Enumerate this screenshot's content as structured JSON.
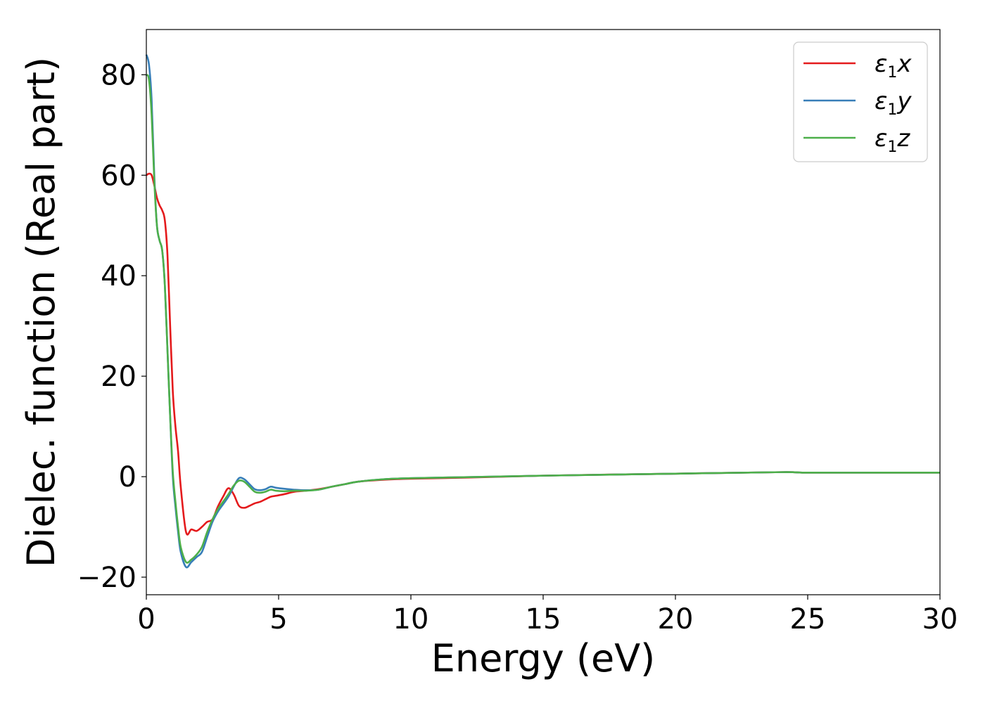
{
  "chart_data": {
    "type": "line",
    "title": "",
    "xlabel": "Energy (eV)",
    "ylabel": "Dielec. function (Real part)",
    "xlim": [
      0,
      30
    ],
    "ylim": [
      -23.5,
      89
    ],
    "xticks": [
      0,
      5,
      10,
      15,
      20,
      25,
      30
    ],
    "xtick_labels": [
      "0",
      "5",
      "10",
      "15",
      "20",
      "25",
      "30"
    ],
    "yticks": [
      -20,
      0,
      20,
      40,
      60,
      80
    ],
    "ytick_labels": [
      "−20",
      "0",
      "20",
      "40",
      "60",
      "80"
    ],
    "grid": false,
    "legend_position": "top-right",
    "series": [
      {
        "name": "ε1x",
        "legend": {
          "base": "ε",
          "sub": "1",
          "var": "x"
        },
        "color": "#e41a1c",
        "x": [
          0.0,
          0.1,
          0.2,
          0.3,
          0.4,
          0.5,
          0.6,
          0.7,
          0.8,
          0.9,
          1.0,
          1.1,
          1.2,
          1.3,
          1.5,
          1.7,
          1.9,
          2.1,
          2.3,
          2.5,
          2.7,
          2.9,
          3.1,
          3.3,
          3.5,
          3.7,
          3.9,
          4.1,
          4.3,
          4.5,
          4.7,
          4.9,
          5.2,
          5.6,
          6.0,
          6.5,
          7.0,
          7.5,
          8.0,
          9.0,
          10.0,
          12.0,
          15.0,
          20.0,
          24.0,
          25.0,
          28.0,
          30.0
        ],
        "y": [
          60,
          60.3,
          60,
          58,
          55.5,
          54,
          53,
          51,
          44,
          30,
          17,
          10,
          5,
          -2,
          -11,
          -10.5,
          -10.8,
          -10,
          -9,
          -8.5,
          -6,
          -4,
          -2.3,
          -3.5,
          -5.8,
          -6.2,
          -5.8,
          -5.3,
          -5,
          -4.5,
          -4,
          -3.8,
          -3.5,
          -3,
          -2.8,
          -2.5,
          -2,
          -1.5,
          -1,
          -0.6,
          -0.4,
          -0.2,
          0.2,
          0.6,
          0.9,
          0.8,
          0.8,
          0.8
        ]
      },
      {
        "name": "ε1y",
        "legend": {
          "base": "ε",
          "sub": "1",
          "var": "y"
        },
        "color": "#377eb8",
        "x": [
          0.0,
          0.1,
          0.2,
          0.3,
          0.4,
          0.5,
          0.6,
          0.7,
          0.8,
          0.9,
          1.0,
          1.1,
          1.2,
          1.3,
          1.5,
          1.7,
          1.9,
          2.1,
          2.3,
          2.5,
          2.7,
          2.9,
          3.1,
          3.3,
          3.5,
          3.7,
          3.9,
          4.1,
          4.3,
          4.5,
          4.7,
          4.9,
          5.2,
          5.6,
          6.0,
          6.5,
          7.0,
          7.5,
          8.0,
          9.0,
          10.0,
          12.0,
          15.0,
          20.0,
          24.0,
          25.0,
          28.0,
          30.0
        ],
        "y": [
          84,
          82,
          75,
          60,
          50,
          47,
          45,
          38,
          25,
          12,
          0,
          -6,
          -11,
          -15,
          -18,
          -17,
          -16,
          -15,
          -12,
          -9,
          -7,
          -5.5,
          -4,
          -2,
          -0.3,
          -0.5,
          -1.5,
          -2.5,
          -2.7,
          -2.5,
          -2,
          -2.2,
          -2.4,
          -2.6,
          -2.7,
          -2.6,
          -2,
          -1.5,
          -1,
          -0.5,
          -0.3,
          -0.1,
          0.2,
          0.6,
          0.9,
          0.8,
          0.8,
          0.8
        ]
      },
      {
        "name": "ε1z",
        "legend": {
          "base": "ε",
          "sub": "1",
          "var": "z"
        },
        "color": "#4daf4a",
        "x": [
          0.0,
          0.1,
          0.2,
          0.3,
          0.4,
          0.5,
          0.6,
          0.7,
          0.8,
          0.9,
          1.0,
          1.1,
          1.2,
          1.3,
          1.5,
          1.7,
          1.9,
          2.1,
          2.3,
          2.5,
          2.7,
          2.9,
          3.1,
          3.3,
          3.5,
          3.7,
          3.9,
          4.1,
          4.3,
          4.5,
          4.7,
          4.9,
          5.2,
          5.6,
          6.0,
          6.5,
          7.0,
          7.5,
          8.0,
          9.0,
          10.0,
          12.0,
          15.0,
          20.0,
          24.0,
          25.0,
          28.0,
          30.0
        ],
        "y": [
          80,
          79,
          72,
          59,
          50,
          47,
          45,
          38,
          25,
          12,
          1,
          -5,
          -10,
          -14,
          -17,
          -16.5,
          -15.5,
          -14,
          -11,
          -8.5,
          -6.5,
          -5,
          -3.5,
          -1.8,
          -0.8,
          -1,
          -2,
          -3,
          -3.2,
          -3,
          -2.6,
          -2.8,
          -2.9,
          -2.8,
          -2.8,
          -2.6,
          -2,
          -1.5,
          -1,
          -0.5,
          -0.3,
          -0.1,
          0.2,
          0.6,
          0.9,
          0.8,
          0.8,
          0.8
        ]
      }
    ]
  }
}
